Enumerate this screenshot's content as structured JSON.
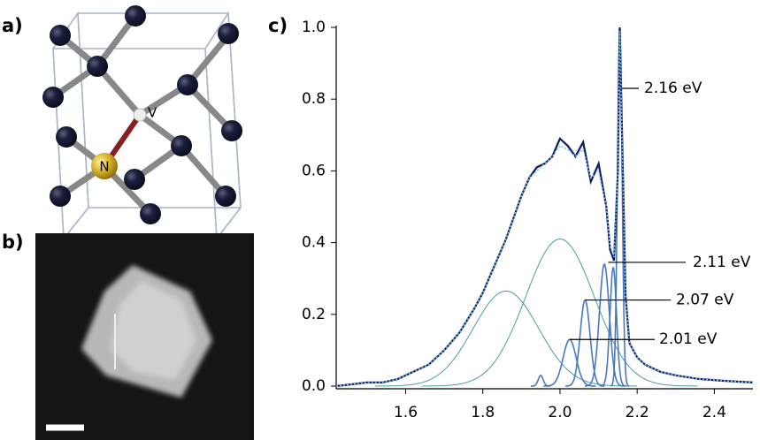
{
  "panels": {
    "a": {
      "label": "a)",
      "atom_labels": {
        "n": "N",
        "v": "V"
      }
    },
    "b": {
      "label": "b)"
    }
  },
  "chart_data": {
    "type": "line",
    "label": "c)",
    "x": [
      1.42,
      1.46,
      1.5,
      1.54,
      1.58,
      1.62,
      1.66,
      1.7,
      1.74,
      1.78,
      1.8,
      1.82,
      1.84,
      1.86,
      1.88,
      1.9,
      1.92,
      1.94,
      1.96,
      1.98,
      2.0,
      2.02,
      2.04,
      2.06,
      2.08,
      2.1,
      2.12,
      2.13,
      2.14,
      2.15,
      2.155,
      2.16,
      2.17,
      2.18,
      2.2,
      2.22,
      2.26,
      2.3,
      2.36,
      2.42,
      2.5
    ],
    "series": [
      {
        "color": "#0d1a5c",
        "style": "solid",
        "values": [
          0.0,
          0.005,
          0.01,
          0.01,
          0.02,
          0.04,
          0.06,
          0.1,
          0.15,
          0.22,
          0.26,
          0.31,
          0.36,
          0.41,
          0.47,
          0.53,
          0.58,
          0.61,
          0.62,
          0.64,
          0.69,
          0.67,
          0.64,
          0.68,
          0.57,
          0.62,
          0.5,
          0.38,
          0.35,
          0.6,
          1.0,
          0.75,
          0.25,
          0.12,
          0.08,
          0.06,
          0.04,
          0.03,
          0.02,
          0.015,
          0.01
        ]
      },
      {
        "color": "#7ec3ea",
        "style": "dotted",
        "values": [
          0.0,
          0.005,
          0.01,
          0.01,
          0.02,
          0.04,
          0.06,
          0.1,
          0.15,
          0.22,
          0.26,
          0.31,
          0.36,
          0.41,
          0.47,
          0.53,
          0.58,
          0.6,
          0.62,
          0.64,
          0.67,
          0.66,
          0.64,
          0.66,
          0.58,
          0.6,
          0.5,
          0.39,
          0.36,
          0.6,
          0.99,
          0.74,
          0.25,
          0.12,
          0.08,
          0.06,
          0.04,
          0.03,
          0.02,
          0.015,
          0.01
        ]
      }
    ],
    "components": [
      {
        "center": 1.86,
        "amplitude": 0.265,
        "fwhm": 0.2,
        "color": "#4f9a9e"
      },
      {
        "center": 2.0,
        "amplitude": 0.41,
        "fwhm": 0.21,
        "color": "#4f9a9e"
      },
      {
        "center": 1.95,
        "amplitude": 0.03,
        "fwhm": 0.015,
        "color": "#4a78c0"
      },
      {
        "center": 2.025,
        "amplitude": 0.13,
        "fwhm": 0.04,
        "color": "#4a78c0"
      },
      {
        "center": 2.065,
        "amplitude": 0.24,
        "fwhm": 0.03,
        "color": "#4a78c0"
      },
      {
        "center": 2.115,
        "amplitude": 0.34,
        "fwhm": 0.03,
        "color": "#4a78c0"
      },
      {
        "center": 2.138,
        "amplitude": 0.33,
        "fwhm": 0.02,
        "color": "#4a78c0"
      },
      {
        "center": 2.155,
        "amplitude": 1.0,
        "fwhm": 0.014,
        "color": "#4a78c0"
      }
    ],
    "annotations": [
      "2.16 eV",
      "2.11 eV",
      "2.07 eV",
      "2.01 eV"
    ],
    "xlim": [
      1.42,
      2.5
    ],
    "ylim": [
      0,
      1.0
    ],
    "xticks": [
      1.6,
      1.8,
      {
        "value": 2,
        "label": "2.0"
      },
      2.2,
      2.4
    ],
    "yticks": [
      {
        "value": 0,
        "label": "0.0"
      },
      0.2,
      0.4,
      0.6,
      0.8,
      {
        "value": 1,
        "label": "1.0"
      }
    ]
  }
}
